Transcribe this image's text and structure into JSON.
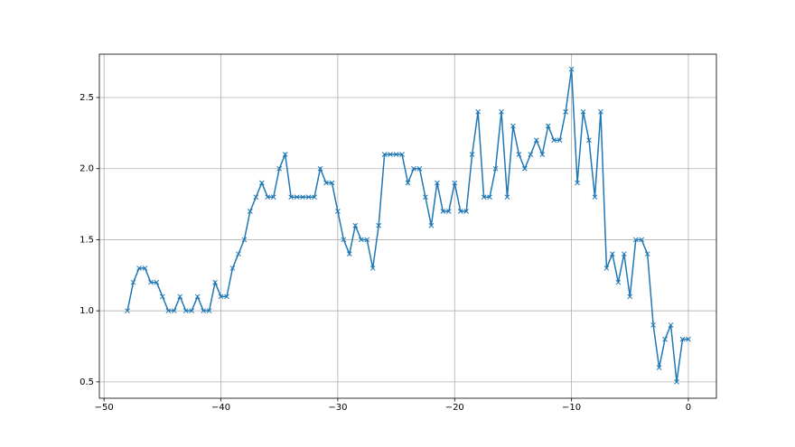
{
  "chart_data": {
    "type": "line",
    "marker": "x",
    "grid": true,
    "x": [
      -48,
      -47.5,
      -47,
      -46.5,
      -46,
      -45.5,
      -45,
      -44.5,
      -44,
      -43.5,
      -43,
      -42.5,
      -42,
      -41.5,
      -41,
      -40.5,
      -40,
      -39.5,
      -39,
      -38.5,
      -38,
      -37.5,
      -37,
      -36.5,
      -36,
      -35.5,
      -35,
      -34.5,
      -34,
      -33.5,
      -33,
      -32.5,
      -32,
      -31.5,
      -31,
      -30.5,
      -30,
      -29.5,
      -29,
      -28.5,
      -28,
      -27.5,
      -27,
      -26.5,
      -26,
      -25.5,
      -25,
      -24.5,
      -24,
      -23.5,
      -23,
      -22.5,
      -22,
      -21.5,
      -21,
      -20.5,
      -20,
      -19.5,
      -19,
      -18.5,
      -18,
      -17.5,
      -17,
      -16.5,
      -16,
      -15.5,
      -15,
      -14.5,
      -14,
      -13.5,
      -13,
      -12.5,
      -12,
      -11.5,
      -11,
      -10.5,
      -10,
      -9.5,
      -9,
      -8.5,
      -8,
      -7.5,
      -7,
      -6.5,
      -6,
      -5.5,
      -5,
      -4.5,
      -4,
      -3.5,
      -3,
      -2.5,
      -2,
      -1.5,
      -1,
      -0.5,
      0
    ],
    "series": [
      {
        "color": "#1f77b4",
        "values": [
          1.0,
          1.2,
          1.3,
          1.3,
          1.2,
          1.2,
          1.1,
          1.0,
          1.0,
          1.1,
          1.0,
          1.0,
          1.1,
          1.0,
          1.0,
          1.2,
          1.1,
          1.1,
          1.3,
          1.4,
          1.5,
          1.7,
          1.8,
          1.9,
          1.8,
          1.8,
          2.0,
          2.1,
          1.8,
          1.8,
          1.8,
          1.8,
          1.8,
          2.0,
          1.9,
          1.9,
          1.7,
          1.5,
          1.4,
          1.6,
          1.5,
          1.5,
          1.3,
          1.6,
          2.1,
          2.1,
          2.1,
          2.1,
          1.9,
          2.0,
          2.0,
          1.8,
          1.6,
          1.9,
          1.7,
          1.7,
          1.9,
          1.7,
          1.7,
          2.1,
          2.4,
          1.8,
          1.8,
          2.0,
          2.4,
          1.8,
          2.3,
          2.1,
          2.0,
          2.1,
          2.2,
          2.1,
          2.3,
          2.2,
          2.2,
          2.4,
          2.7,
          1.9,
          2.4,
          2.2,
          1.8,
          2.4,
          1.3,
          1.4,
          1.2,
          1.4,
          1.1,
          1.5,
          1.5,
          1.4,
          0.9,
          0.6,
          0.8,
          0.9,
          0.5,
          0.8,
          0.8
        ]
      }
    ],
    "xlim": [
      -50.4,
      2.4
    ],
    "xticks": [
      {
        "value": -50,
        "label": "−50"
      },
      {
        "value": -40,
        "label": "−40"
      },
      {
        "value": -30,
        "label": "−30"
      },
      {
        "value": -20,
        "label": "−20"
      },
      {
        "value": -10,
        "label": "−10"
      },
      0
    ],
    "ylim": [
      0.385,
      2.805
    ],
    "yticks": [
      0.5,
      {
        "value": 1.0,
        "label": "1.0"
      },
      1.5,
      {
        "value": 2.0,
        "label": "2.0"
      },
      2.5
    ]
  }
}
